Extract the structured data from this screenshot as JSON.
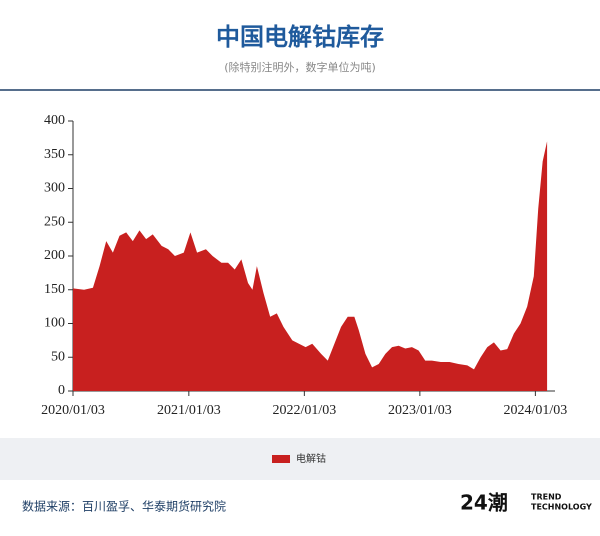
{
  "chart_data": {
    "type": "area",
    "title": "中国电解钴库存",
    "subtitle": "(除特别注明外，数字单位为吨)",
    "x": [
      "2020/01/03",
      "2020/02/07",
      "2020/03/06",
      "2020/03/27",
      "2020/04/17",
      "2020/05/08",
      "2020/05/29",
      "2020/06/19",
      "2020/07/10",
      "2020/07/31",
      "2020/08/21",
      "2020/09/11",
      "2020/10/09",
      "2020/10/30",
      "2020/11/20",
      "2020/12/18",
      "2021/01/08",
      "2021/01/29",
      "2021/02/26",
      "2021/03/19",
      "2021/04/16",
      "2021/05/07",
      "2021/05/28",
      "2021/06/18",
      "2021/07/09",
      "2021/07/23",
      "2021/08/06",
      "2021/08/27",
      "2021/09/17",
      "2021/10/08",
      "2021/10/29",
      "2021/11/26",
      "2021/12/17",
      "2022/01/07",
      "2022/01/28",
      "2022/02/25",
      "2022/03/18",
      "2022/04/08",
      "2022/04/29",
      "2022/05/20",
      "2022/06/10",
      "2022/06/24",
      "2022/07/15",
      "2022/08/05",
      "2022/08/26",
      "2022/09/16",
      "2022/10/07",
      "2022/10/28",
      "2022/11/18",
      "2022/12/09",
      "2022/12/30",
      "2023/01/20",
      "2023/02/10",
      "2023/03/10",
      "2023/04/07",
      "2023/05/05",
      "2023/06/02",
      "2023/06/23",
      "2023/07/14",
      "2023/08/04",
      "2023/08/25",
      "2023/09/15",
      "2023/10/06",
      "2023/10/27",
      "2023/11/17",
      "2023/12/08",
      "2023/12/29",
      "2024/01/12",
      "2024/01/26",
      "2024/02/09"
    ],
    "series": [
      {
        "name": "电解钴",
        "color": "#c8201f",
        "values": [
          152,
          150,
          153,
          185,
          222,
          205,
          230,
          235,
          222,
          238,
          225,
          232,
          215,
          210,
          200,
          205,
          235,
          205,
          210,
          200,
          190,
          190,
          180,
          195,
          160,
          150,
          185,
          145,
          110,
          115,
          95,
          75,
          70,
          65,
          70,
          55,
          45,
          70,
          95,
          110,
          110,
          90,
          55,
          35,
          40,
          55,
          65,
          67,
          63,
          65,
          60,
          45,
          45,
          43,
          43,
          40,
          38,
          32,
          50,
          65,
          72,
          60,
          62,
          85,
          100,
          125,
          170,
          270,
          340,
          370
        ]
      }
    ],
    "xlim": [
      "2020/01/03",
      "2024/03/05"
    ],
    "xticks": [
      "2020/01/03",
      "2021/01/03",
      "2022/01/03",
      "2023/01/03",
      "2024/01/03"
    ],
    "ylim": [
      0,
      400
    ],
    "yticks": [
      0,
      50,
      100,
      150,
      200,
      250,
      300,
      350,
      400
    ]
  },
  "footer": {
    "source": "数据来源：百川盈孚、华泰期货研究院",
    "logo": "24潮",
    "logo_lines": [
      "TREND",
      "TECHNOLOGY"
    ]
  }
}
